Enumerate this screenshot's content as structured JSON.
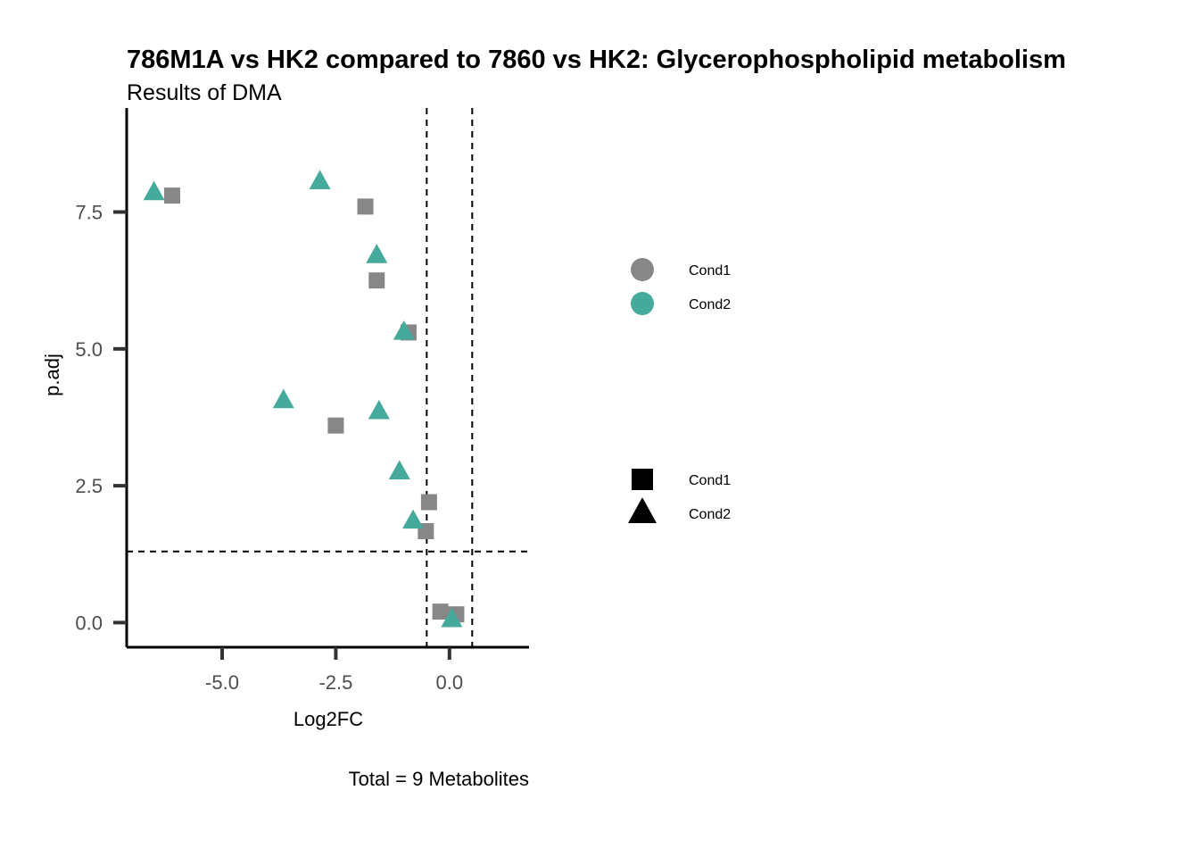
{
  "chart_data": {
    "type": "scatter",
    "title": "786M1A vs HK2 compared to 7860 vs HK2: Glycerophospholipid metabolism",
    "subtitle": "Results of DMA",
    "xlabel": "Log2FC",
    "ylabel": "p.adj",
    "caption": "Total = 9 Metabolites",
    "xlim": [
      -7.1,
      1.75
    ],
    "ylim": [
      -0.45,
      9.4
    ],
    "x_ticks": [
      -5.0,
      -2.5,
      0.0
    ],
    "x_tick_labels": [
      "-5.0",
      "-2.5",
      "0.0"
    ],
    "y_ticks": [
      0.0,
      2.5,
      5.0,
      7.5
    ],
    "y_tick_labels": [
      "0.0",
      "2.5",
      "5.0",
      "7.5"
    ],
    "grid": false,
    "reference_lines": {
      "vertical": [
        -0.5,
        0.5
      ],
      "horizontal": [
        1.3
      ],
      "style": "dashed"
    },
    "colors": {
      "Cond1": "#878787",
      "Cond2": "#45A99C"
    },
    "series": [
      {
        "name": "Cond1",
        "marker": "square",
        "x": [
          -6.1,
          -1.85,
          -1.6,
          -0.9,
          -2.5,
          -0.45,
          -0.52,
          -0.2,
          0.15
        ],
        "y": [
          7.8,
          7.6,
          6.25,
          5.3,
          3.6,
          2.2,
          1.67,
          0.2,
          0.15
        ]
      },
      {
        "name": "Cond2",
        "marker": "triangle",
        "x": [
          -6.5,
          -2.85,
          -1.6,
          -1.0,
          -3.65,
          -1.55,
          -1.1,
          -0.8,
          0.05
        ],
        "y": [
          7.85,
          8.05,
          6.7,
          5.3,
          4.05,
          3.85,
          2.75,
          1.85,
          0.05
        ]
      }
    ],
    "legend": {
      "placement": "right",
      "color_legend": {
        "entries": [
          "Cond1",
          "Cond2"
        ]
      },
      "shape_legend": {
        "entries": [
          "Cond1",
          "Cond2"
        ]
      }
    }
  }
}
